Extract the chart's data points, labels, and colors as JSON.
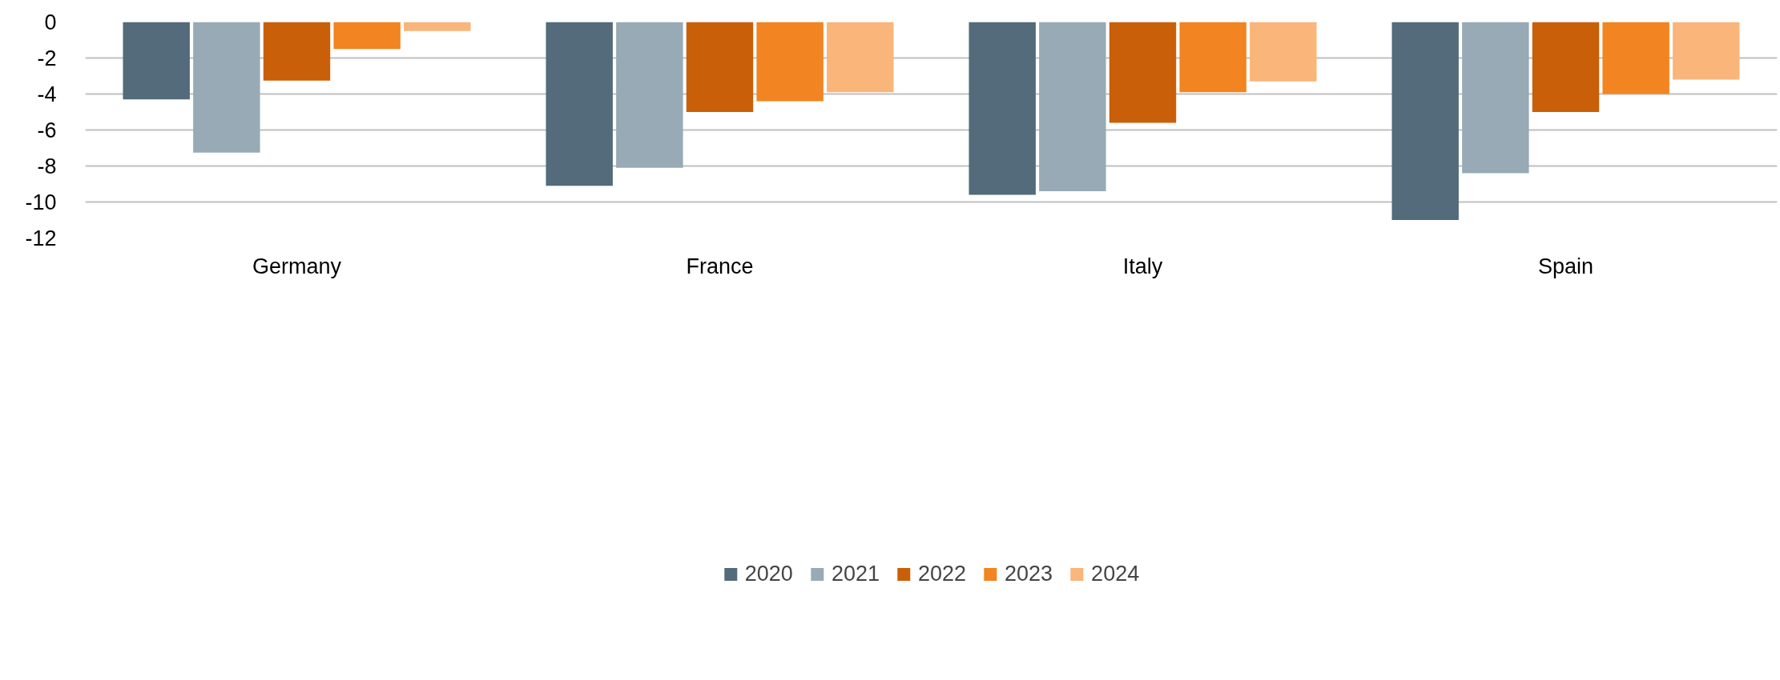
{
  "chart_data": {
    "type": "bar",
    "categories": [
      "Germany",
      "France",
      "Italy",
      "Spain"
    ],
    "series": [
      {
        "name": "2020",
        "color": "#536b7a",
        "values": [
          -4.3,
          -9.1,
          -9.6,
          -11.0
        ]
      },
      {
        "name": "2021",
        "color": "#97aab5",
        "values": [
          -7.25,
          -8.1,
          -9.4,
          -8.4
        ]
      },
      {
        "name": "2022",
        "color": "#c95f09",
        "values": [
          -3.25,
          -5.0,
          -5.6,
          -5.0
        ]
      },
      {
        "name": "2023",
        "color": "#f28421",
        "values": [
          -1.5,
          -4.4,
          -3.9,
          -4.0
        ]
      },
      {
        "name": "2024",
        "color": "#f9b57a",
        "values": [
          -0.5,
          -3.9,
          -3.3,
          -3.2
        ]
      }
    ],
    "ylim": [
      -12,
      0
    ],
    "yticks": [
      -12,
      -10,
      -8,
      -6,
      -4,
      -2,
      0
    ],
    "grid": "y",
    "legend": "bottom"
  }
}
